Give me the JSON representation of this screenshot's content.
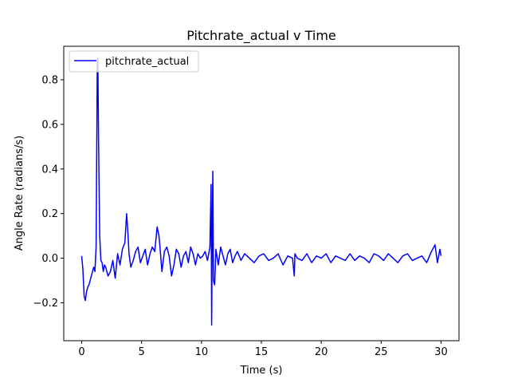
{
  "chart_data": {
    "type": "line",
    "title": "Pitchrate_actual v Time",
    "xlabel": "Time (s)",
    "ylabel": "Angle Rate (radians/s)",
    "xlim": [
      -1.5,
      31.5
    ],
    "ylim": [
      -0.37,
      0.95
    ],
    "xticks": [
      0,
      5,
      10,
      15,
      20,
      25,
      30
    ],
    "xtick_labels": [
      "0",
      "5",
      "10",
      "15",
      "20",
      "25",
      "30"
    ],
    "yticks": [
      -0.2,
      0.0,
      0.2,
      0.4,
      0.6,
      0.8
    ],
    "ytick_labels": [
      "−0.2",
      "0.0",
      "0.2",
      "0.4",
      "0.6",
      "0.8"
    ],
    "grid": false,
    "legend": {
      "position": "upper-left",
      "entries": [
        "pitchrate_actual"
      ]
    },
    "series": [
      {
        "name": "pitchrate_actual",
        "color": "#0000ff",
        "x": [
          0.0,
          0.1,
          0.2,
          0.3,
          0.4,
          0.5,
          0.6,
          0.7,
          0.8,
          0.9,
          1.0,
          1.1,
          1.2,
          1.3,
          1.35,
          1.4,
          1.5,
          1.6,
          1.7,
          1.8,
          1.9,
          2.0,
          2.2,
          2.4,
          2.6,
          2.8,
          3.0,
          3.2,
          3.4,
          3.6,
          3.75,
          3.85,
          3.95,
          4.1,
          4.3,
          4.5,
          4.7,
          4.9,
          5.1,
          5.3,
          5.5,
          5.7,
          5.9,
          6.1,
          6.3,
          6.45,
          6.55,
          6.7,
          6.9,
          7.1,
          7.3,
          7.5,
          7.7,
          7.9,
          8.1,
          8.3,
          8.5,
          8.7,
          8.9,
          9.1,
          9.3,
          9.5,
          9.7,
          9.9,
          10.1,
          10.3,
          10.5,
          10.7,
          10.8,
          10.85,
          10.9,
          10.95,
          11.0,
          11.1,
          11.2,
          11.4,
          11.6,
          11.8,
          12.0,
          12.2,
          12.4,
          12.6,
          12.8,
          13.0,
          13.3,
          13.6,
          14.0,
          14.4,
          14.8,
          15.2,
          15.6,
          16.0,
          16.4,
          16.8,
          17.2,
          17.6,
          17.75,
          17.8,
          18.0,
          18.4,
          18.8,
          19.2,
          19.6,
          20.0,
          20.4,
          20.8,
          21.2,
          21.6,
          22.0,
          22.4,
          22.8,
          23.2,
          23.6,
          24.0,
          24.4,
          24.8,
          25.2,
          25.6,
          26.0,
          26.4,
          26.8,
          27.2,
          27.6,
          28.0,
          28.4,
          28.8,
          29.2,
          29.5,
          29.7,
          29.9,
          30.0
        ],
        "y": [
          0.01,
          -0.05,
          -0.17,
          -0.19,
          -0.15,
          -0.13,
          -0.12,
          -0.1,
          -0.08,
          -0.06,
          -0.04,
          -0.06,
          0.05,
          0.88,
          0.9,
          0.55,
          0.1,
          -0.01,
          -0.02,
          -0.06,
          -0.03,
          -0.04,
          -0.08,
          -0.06,
          -0.01,
          -0.09,
          0.02,
          -0.03,
          0.04,
          0.07,
          0.2,
          0.12,
          0.02,
          -0.04,
          -0.01,
          0.03,
          0.05,
          -0.02,
          0.01,
          0.04,
          -0.03,
          0.02,
          0.05,
          0.03,
          0.14,
          0.1,
          0.04,
          -0.06,
          0.03,
          0.05,
          0.01,
          -0.08,
          -0.03,
          0.04,
          0.02,
          -0.04,
          0.01,
          0.03,
          -0.02,
          0.05,
          0.02,
          -0.03,
          0.02,
          0.0,
          0.01,
          0.03,
          -0.01,
          0.05,
          0.33,
          -0.3,
          0.15,
          0.39,
          -0.1,
          -0.12,
          0.04,
          -0.03,
          0.05,
          0.01,
          -0.03,
          0.02,
          0.04,
          -0.02,
          0.01,
          0.03,
          -0.01,
          0.02,
          0.0,
          -0.02,
          0.01,
          0.02,
          -0.01,
          0.0,
          0.02,
          -0.03,
          0.01,
          0.0,
          -0.08,
          0.02,
          0.0,
          -0.01,
          0.02,
          -0.02,
          0.01,
          0.0,
          0.02,
          -0.02,
          0.01,
          0.0,
          -0.01,
          0.02,
          -0.01,
          0.01,
          0.0,
          -0.02,
          0.02,
          0.01,
          -0.01,
          0.02,
          0.0,
          -0.02,
          0.01,
          0.02,
          -0.01,
          0.0,
          0.01,
          -0.02,
          0.03,
          0.06,
          -0.02,
          0.04,
          0.01
        ]
      }
    ]
  }
}
